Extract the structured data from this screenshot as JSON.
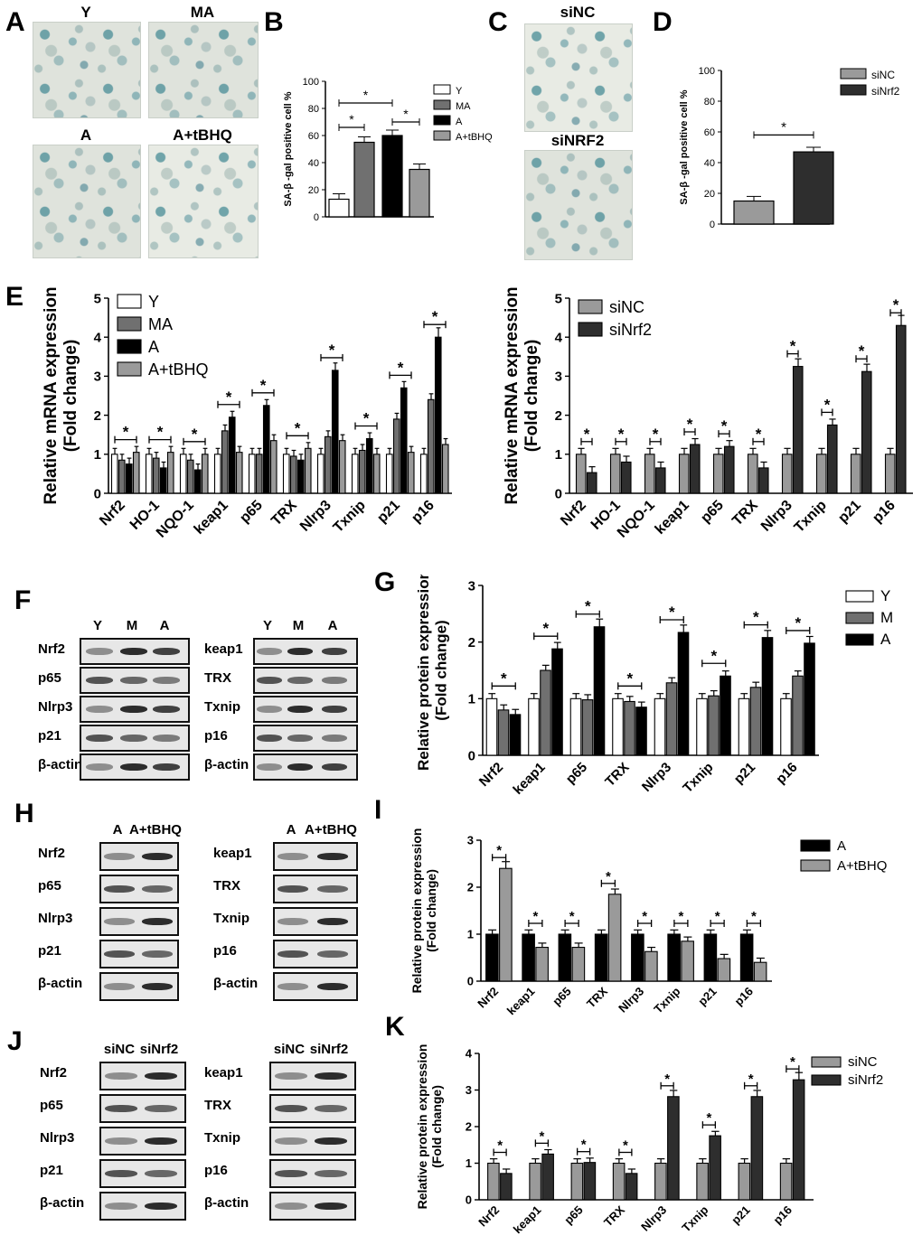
{
  "panels": {
    "A": {
      "letter": "A",
      "images": [
        "Y",
        "MA",
        "A",
        "A+tBHQ"
      ]
    },
    "B": {
      "letter": "B"
    },
    "C": {
      "letter": "C",
      "images": [
        "siNC",
        "siNRF2"
      ]
    },
    "D": {
      "letter": "D"
    },
    "E": {
      "letter": "E"
    },
    "F": {
      "letter": "F",
      "lanes_left": [
        "Y",
        "M",
        "A"
      ],
      "lanes_right": [
        "Y",
        "M",
        "A"
      ],
      "rows_left": [
        "Nrf2",
        "p65",
        "Nlrp3",
        "p21",
        "β-actin"
      ],
      "rows_right": [
        "keap1",
        "TRX",
        "Txnip",
        "p16",
        "β-actin"
      ]
    },
    "G": {
      "letter": "G"
    },
    "H": {
      "letter": "H",
      "lanes_left": [
        "A",
        "A+tBHQ"
      ],
      "lanes_right": [
        "A",
        "A+tBHQ"
      ],
      "rows_left": [
        "Nrf2",
        "p65",
        "Nlrp3",
        "p21",
        "β-actin"
      ],
      "rows_right": [
        "keap1",
        "TRX",
        "Txnip",
        "p16",
        "β-actin"
      ]
    },
    "I": {
      "letter": "I"
    },
    "J": {
      "letter": "J",
      "lanes_left": [
        "siNC",
        "siNrf2"
      ],
      "lanes_right": [
        "siNC",
        "siNrf2"
      ],
      "rows_left": [
        "Nrf2",
        "p65",
        "Nlrp3",
        "p21",
        "β-actin"
      ],
      "rows_right": [
        "keap1",
        "TRX",
        "Txnip",
        "p16",
        "β-actin"
      ]
    },
    "K": {
      "letter": "K"
    }
  },
  "colors": {
    "Y": "#ffffff",
    "MA": "#707070",
    "A": "#000000",
    "tBHQ": "#9a9a9a",
    "siNC": "#9a9a9a",
    "siNrf2": "#2e2e2e"
  },
  "chart_data": [
    {
      "id": "B",
      "type": "bar",
      "ylabel": "SA-β -gal positive cell %",
      "ylim": [
        0,
        100
      ],
      "yticks": [
        0,
        20,
        40,
        60,
        80,
        100
      ],
      "series": [
        {
          "name": "Y",
          "values": [
            13
          ]
        },
        {
          "name": "MA",
          "values": [
            55
          ]
        },
        {
          "name": "A",
          "values": [
            60
          ]
        },
        {
          "name": "A+tBHQ",
          "values": [
            35
          ]
        }
      ],
      "legend": "right",
      "annotations": [
        "*",
        "*",
        "*"
      ]
    },
    {
      "id": "D",
      "type": "bar",
      "ylabel": "SA-β -gal positive cell %",
      "ylim": [
        0,
        100
      ],
      "yticks": [
        0,
        20,
        40,
        60,
        80,
        100
      ],
      "series": [
        {
          "name": "siNC",
          "values": [
            15
          ]
        },
        {
          "name": "siNrf2",
          "values": [
            47
          ]
        }
      ],
      "legend": "top-right",
      "annotations": [
        "*"
      ]
    },
    {
      "id": "E1",
      "type": "bar",
      "ylabel": "Relative mRNA expression\n(Fold change)",
      "ylim": [
        0,
        5
      ],
      "yticks": [
        0,
        1,
        2,
        3,
        4,
        5
      ],
      "categories": [
        "Nrf2",
        "HO-1",
        "NQO-1",
        "keap1",
        "p65",
        "TRX",
        "Nlrp3",
        "Txnip",
        "p21",
        "p16"
      ],
      "series": [
        {
          "name": "Y",
          "values": [
            1,
            1,
            1,
            1,
            1,
            1,
            1,
            1,
            1,
            1
          ]
        },
        {
          "name": "MA",
          "values": [
            0.85,
            0.9,
            0.85,
            1.6,
            1.0,
            0.95,
            1.45,
            1.1,
            1.9,
            2.4
          ]
        },
        {
          "name": "A",
          "values": [
            0.75,
            0.65,
            0.6,
            1.95,
            2.25,
            0.85,
            3.15,
            1.4,
            2.7,
            4.0
          ]
        },
        {
          "name": "A+tBHQ",
          "values": [
            1.05,
            1.05,
            1.0,
            1.05,
            1.35,
            1.15,
            1.35,
            1.0,
            1.05,
            1.25
          ]
        }
      ],
      "legend": "top-left"
    },
    {
      "id": "E2",
      "type": "bar",
      "ylabel": "Relative mRNA expression\n(Fold change)",
      "ylim": [
        0,
        5
      ],
      "yticks": [
        0,
        1,
        2,
        3,
        4,
        5
      ],
      "categories": [
        "Nrf2",
        "HO-1",
        "NQO-1",
        "keap1",
        "p65",
        "TRX",
        "Nlrp3",
        "Txnip",
        "p21",
        "p16"
      ],
      "series": [
        {
          "name": "siNC",
          "values": [
            1,
            1,
            1,
            1,
            1,
            1,
            1,
            1,
            1,
            1
          ]
        },
        {
          "name": "siNrf2",
          "values": [
            0.53,
            0.8,
            0.65,
            1.25,
            1.2,
            0.65,
            3.25,
            1.75,
            3.12,
            4.3
          ]
        }
      ],
      "legend": "top-left"
    },
    {
      "id": "G",
      "type": "bar",
      "ylabel": "Relative protein expression\n(Fold change)",
      "ylim": [
        0,
        3
      ],
      "yticks": [
        0,
        1,
        2,
        3
      ],
      "categories": [
        "Nrf2",
        "keap1",
        "p65",
        "TRX",
        "Nlrp3",
        "Txnip",
        "p21",
        "p16"
      ],
      "series": [
        {
          "name": "Y",
          "values": [
            1,
            1,
            1,
            1,
            1,
            1,
            1,
            1
          ]
        },
        {
          "name": "M",
          "values": [
            0.8,
            1.5,
            0.98,
            0.95,
            1.28,
            1.05,
            1.2,
            1.4
          ]
        },
        {
          "name": "A",
          "values": [
            0.72,
            1.88,
            2.27,
            0.85,
            2.17,
            1.4,
            2.08,
            1.98
          ]
        }
      ],
      "legend": "top-right"
    },
    {
      "id": "I",
      "type": "bar",
      "ylabel": "Relative protein expression\n(Fold change)",
      "ylim": [
        0,
        3
      ],
      "yticks": [
        0,
        1,
        2,
        3
      ],
      "categories": [
        "Nrf2",
        "keap1",
        "p65",
        "TRX",
        "Nlrp3",
        "Txnip",
        "p21",
        "p16"
      ],
      "series": [
        {
          "name": "A",
          "values": [
            1,
            1,
            1,
            1,
            1,
            1,
            1,
            1
          ]
        },
        {
          "name": "A+tBHQ",
          "values": [
            2.4,
            0.72,
            0.72,
            1.85,
            0.63,
            0.85,
            0.48,
            0.4
          ]
        }
      ],
      "legend": "top-right"
    },
    {
      "id": "K",
      "type": "bar",
      "ylabel": "Relative protein expression\n(Fold change)",
      "ylim": [
        0,
        4
      ],
      "yticks": [
        0,
        1,
        2,
        3,
        4
      ],
      "categories": [
        "Nrf2",
        "keap1",
        "p65",
        "TRX",
        "Nlrp3",
        "Txnip",
        "p21",
        "p16"
      ],
      "series": [
        {
          "name": "siNC",
          "values": [
            1,
            1,
            1,
            1,
            1,
            1,
            1,
            1
          ]
        },
        {
          "name": "siNrf2",
          "values": [
            0.72,
            1.25,
            1.02,
            0.72,
            2.82,
            1.75,
            2.82,
            3.28
          ]
        }
      ],
      "legend": "top-right"
    }
  ]
}
